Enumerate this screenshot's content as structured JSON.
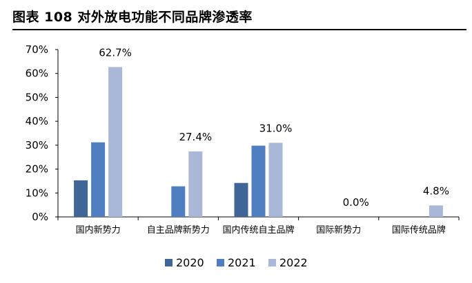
{
  "chart_data": {
    "type": "bar",
    "title": "图表 108 对外放电功能不同品牌渗透率",
    "categories": [
      "国内新势力",
      "自主品牌新势力",
      "国内传统自主品牌",
      "国际新势力",
      "国际传统品牌"
    ],
    "series": [
      {
        "name": "2020",
        "color": "#3f6696",
        "values": [
          15.3,
          null,
          14.2,
          null,
          null
        ]
      },
      {
        "name": "2021",
        "color": "#4f7fc0",
        "values": [
          31.2,
          12.8,
          29.8,
          null,
          null
        ]
      },
      {
        "name": "2022",
        "color": "#a9b8d8",
        "values": [
          62.7,
          27.4,
          31.0,
          0.0,
          4.8
        ]
      }
    ],
    "data_labels": {
      "series": "2022",
      "texts": [
        "62.7%",
        "27.4%",
        "31.0%",
        "0.0%",
        "4.8%"
      ]
    },
    "yticks": [
      "0%",
      "10%",
      "20%",
      "30%",
      "40%",
      "50%",
      "60%",
      "70%"
    ],
    "ylim": [
      0,
      70
    ],
    "grid": false,
    "legend_position": "bottom"
  }
}
